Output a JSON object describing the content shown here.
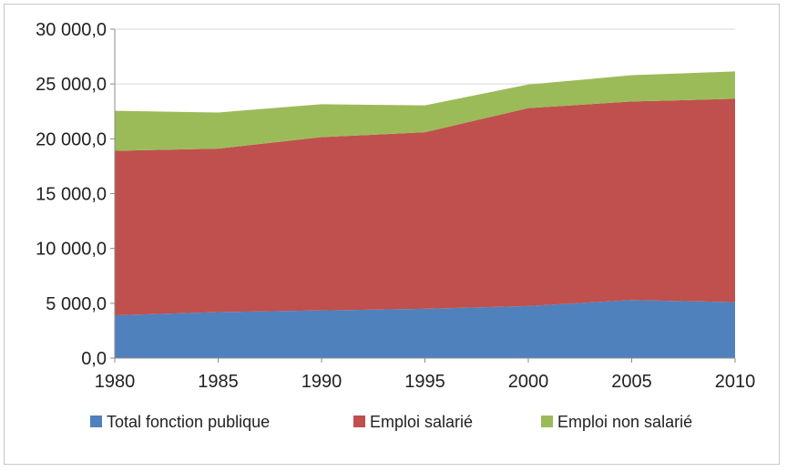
{
  "chart_data": {
    "type": "area",
    "stacked": true,
    "x": [
      1980,
      1985,
      1990,
      1995,
      2000,
      2005,
      2010
    ],
    "x_tick_labels": [
      "1980",
      "1985",
      "1990",
      "1995",
      "2000",
      "2005",
      "2010"
    ],
    "y_tick_labels": [
      "0,0",
      "5 000,0",
      "10 000,0",
      "15 000,0",
      "20 000,0",
      "25 000,0",
      "30 000,0"
    ],
    "ylim": [
      0,
      30000
    ],
    "y_ticks": [
      0,
      5000,
      10000,
      15000,
      20000,
      25000,
      30000
    ],
    "grid": "horizontal",
    "legend_position": "bottom",
    "series": [
      {
        "name": "Total fonction publique",
        "color": "#4f81bd",
        "values": [
          3900,
          4200,
          4350,
          4500,
          4750,
          5300,
          5100
        ]
      },
      {
        "name": "Emploi salarié",
        "color": "#c0504d",
        "values": [
          15000,
          14900,
          15800,
          16100,
          18050,
          18100,
          18550
        ]
      },
      {
        "name": "Emploi non salarié",
        "color": "#9bbb59",
        "values": [
          3650,
          3300,
          3000,
          2450,
          2150,
          2400,
          2500
        ]
      }
    ]
  }
}
